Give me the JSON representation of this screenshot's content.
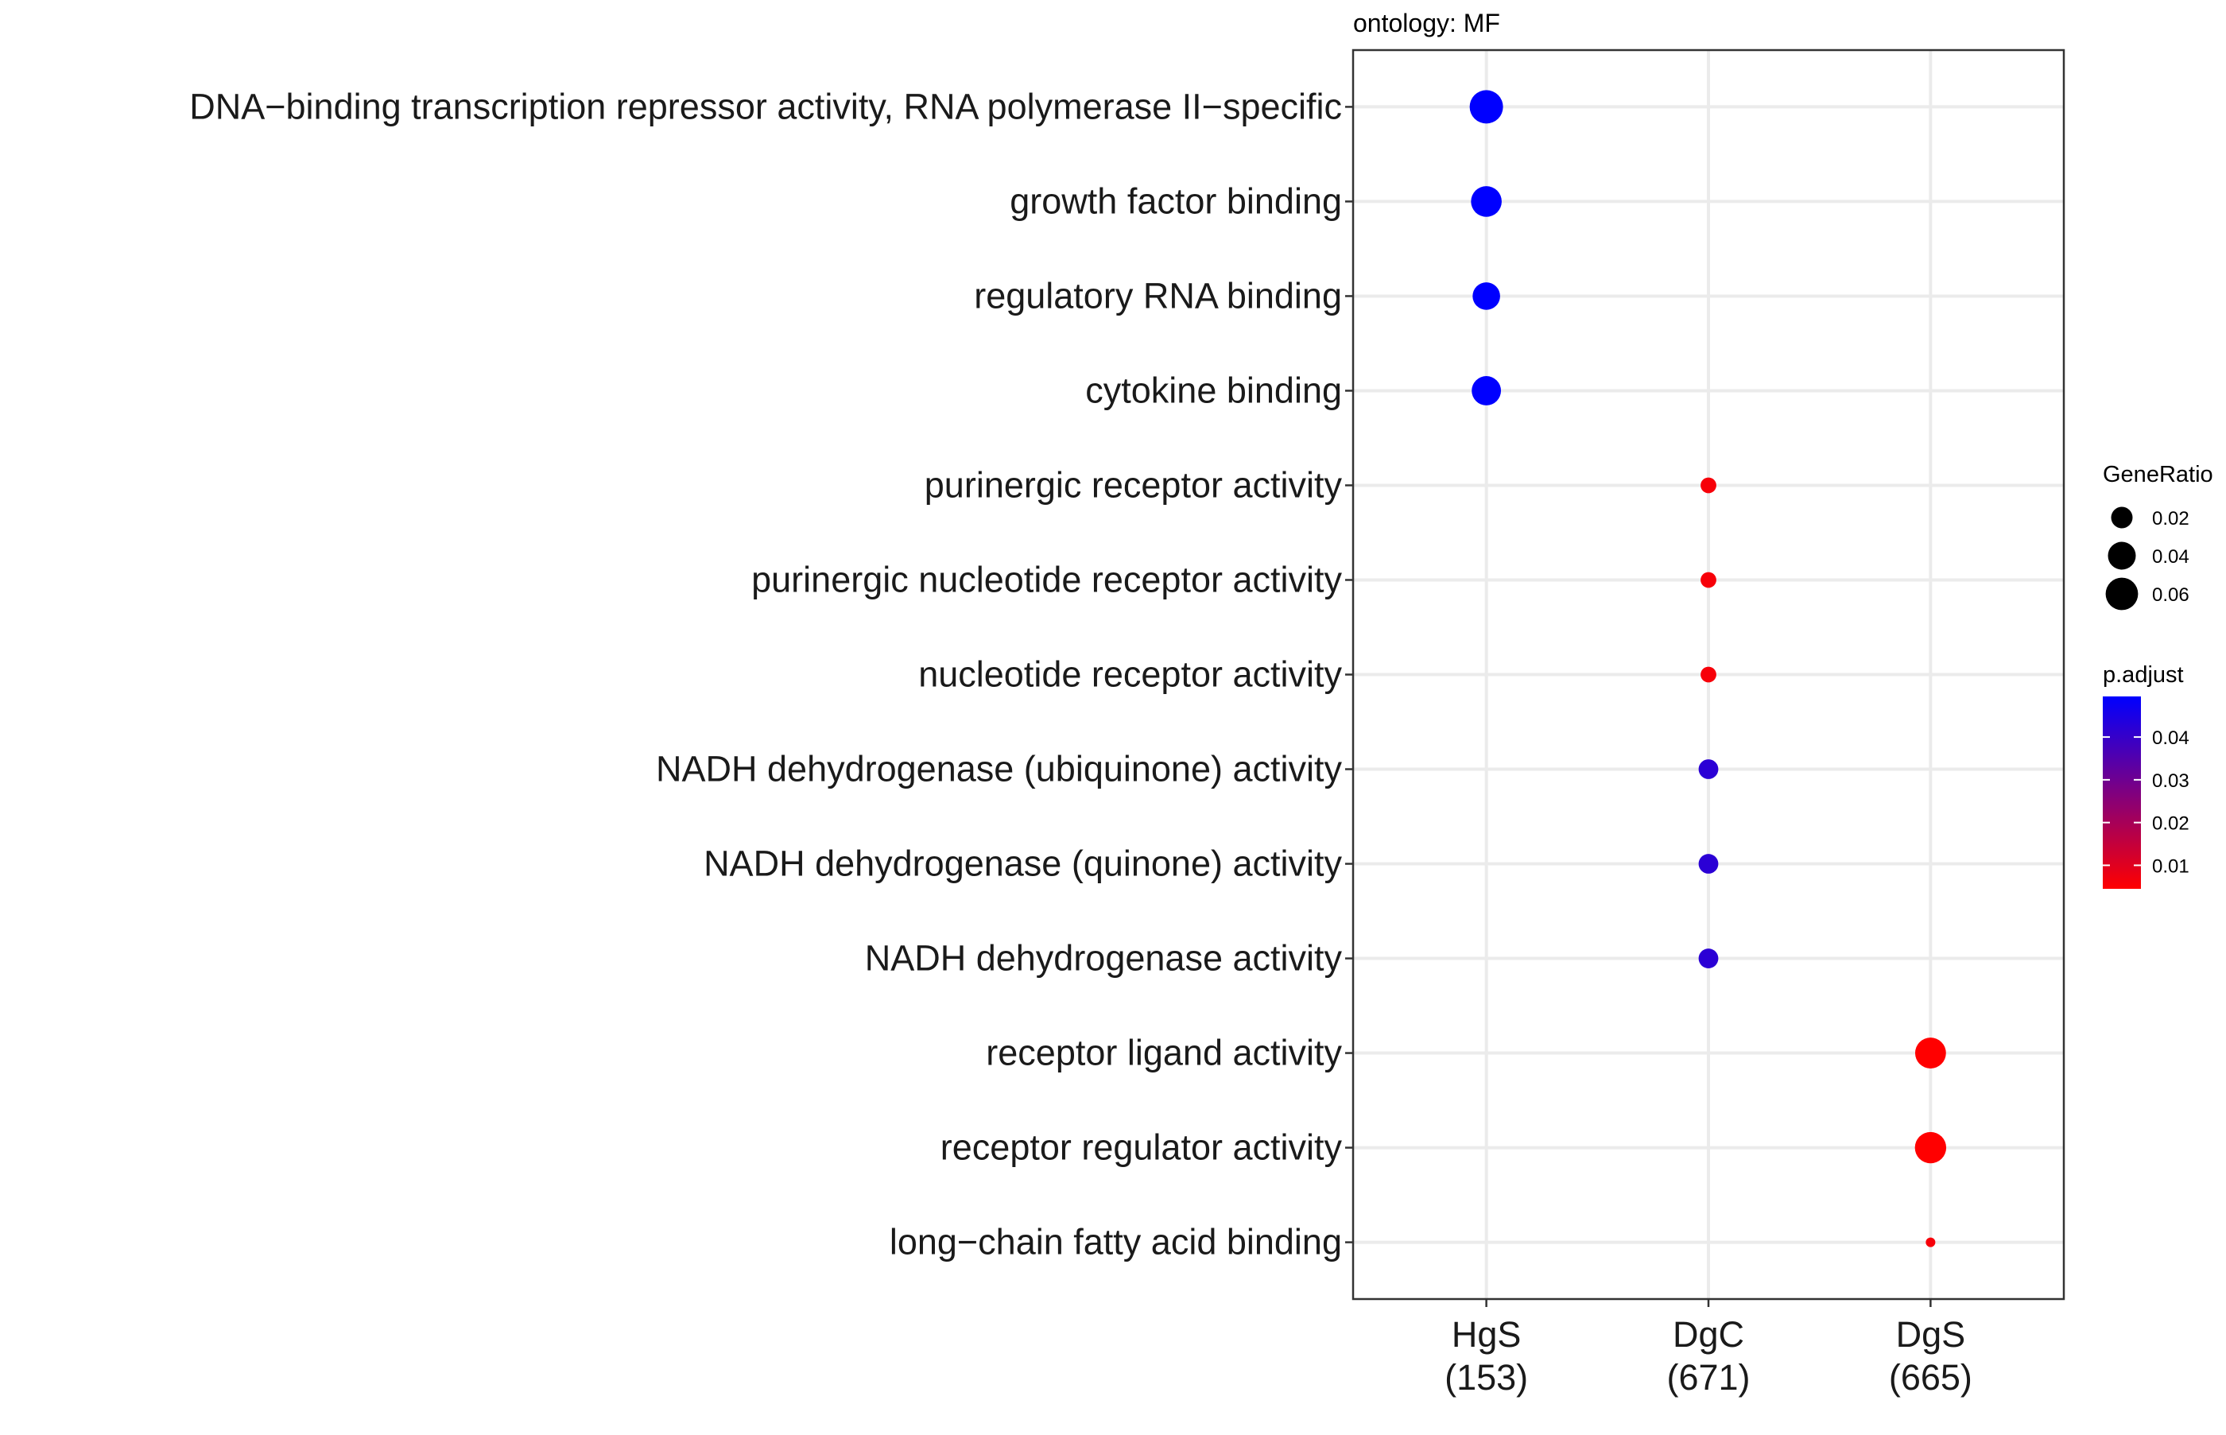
{
  "chart_data": {
    "type": "scatter",
    "title": "ontology: MF",
    "xlabel": "",
    "ylabel": "",
    "x_categories": [
      "HgS\n(153)",
      "DgC\n(671)",
      "DgS\n(665)"
    ],
    "y_categories": [
      "DNA−binding transcription repressor activity, RNA polymerase II−specific",
      "growth factor binding",
      "regulatory RNA binding",
      "cytokine binding",
      "purinergic receptor activity",
      "purinergic nucleotide receptor activity",
      "nucleotide receptor activity",
      "NADH dehydrogenase (ubiquinone) activity",
      "NADH dehydrogenase (quinone) activity",
      "NADH dehydrogenase activity",
      "receptor ligand activity",
      "receptor regulator activity",
      "long−chain fatty acid binding"
    ],
    "points": [
      {
        "x": "HgS\n(153)",
        "y": "DNA−binding transcription repressor activity, RNA polymerase II−specific",
        "gene_ratio": 0.065,
        "p_adjust": 0.0495
      },
      {
        "x": "HgS\n(153)",
        "y": "growth factor binding",
        "gene_ratio": 0.052,
        "p_adjust": 0.0495
      },
      {
        "x": "HgS\n(153)",
        "y": "regulatory RNA binding",
        "gene_ratio": 0.039,
        "p_adjust": 0.0495
      },
      {
        "x": "HgS\n(153)",
        "y": "cytokine binding",
        "gene_ratio": 0.046,
        "p_adjust": 0.0495
      },
      {
        "x": "DgC\n(671)",
        "y": "purinergic receptor activity",
        "gene_ratio": 0.009,
        "p_adjust": 0.006
      },
      {
        "x": "DgC\n(671)",
        "y": "purinergic nucleotide receptor activity",
        "gene_ratio": 0.009,
        "p_adjust": 0.006
      },
      {
        "x": "DgC\n(671)",
        "y": "nucleotide receptor activity",
        "gene_ratio": 0.009,
        "p_adjust": 0.006
      },
      {
        "x": "DgC\n(671)",
        "y": "NADH dehydrogenase (ubiquinone) activity",
        "gene_ratio": 0.016,
        "p_adjust": 0.042
      },
      {
        "x": "DgC\n(671)",
        "y": "NADH dehydrogenase (quinone) activity",
        "gene_ratio": 0.016,
        "p_adjust": 0.042
      },
      {
        "x": "DgC\n(671)",
        "y": "NADH dehydrogenase activity",
        "gene_ratio": 0.016,
        "p_adjust": 0.042
      },
      {
        "x": "DgS\n(665)",
        "y": "receptor ligand activity",
        "gene_ratio": 0.053,
        "p_adjust": 0.0045
      },
      {
        "x": "DgS\n(665)",
        "y": "receptor regulator activity",
        "gene_ratio": 0.055,
        "p_adjust": 0.0045
      },
      {
        "x": "DgS\n(665)",
        "y": "long−chain fatty acid binding",
        "gene_ratio": 0.005,
        "p_adjust": 0.006
      }
    ],
    "size_legend": {
      "title": "GeneRatio",
      "values": [
        0.02,
        0.04,
        0.06
      ],
      "labels": [
        "0.02",
        "0.04",
        "0.06"
      ],
      "range": [
        0.005,
        0.065
      ]
    },
    "color_legend": {
      "title": "p.adjust",
      "ticks": [
        0.04,
        0.03,
        0.02,
        0.01
      ],
      "labels": [
        "0.04",
        "0.03",
        "0.02",
        "0.01"
      ],
      "range": [
        0.0045,
        0.0495
      ],
      "low_color": "#ff0000",
      "high_color": "#0000ff"
    },
    "grid": true,
    "legend_position": "right"
  }
}
